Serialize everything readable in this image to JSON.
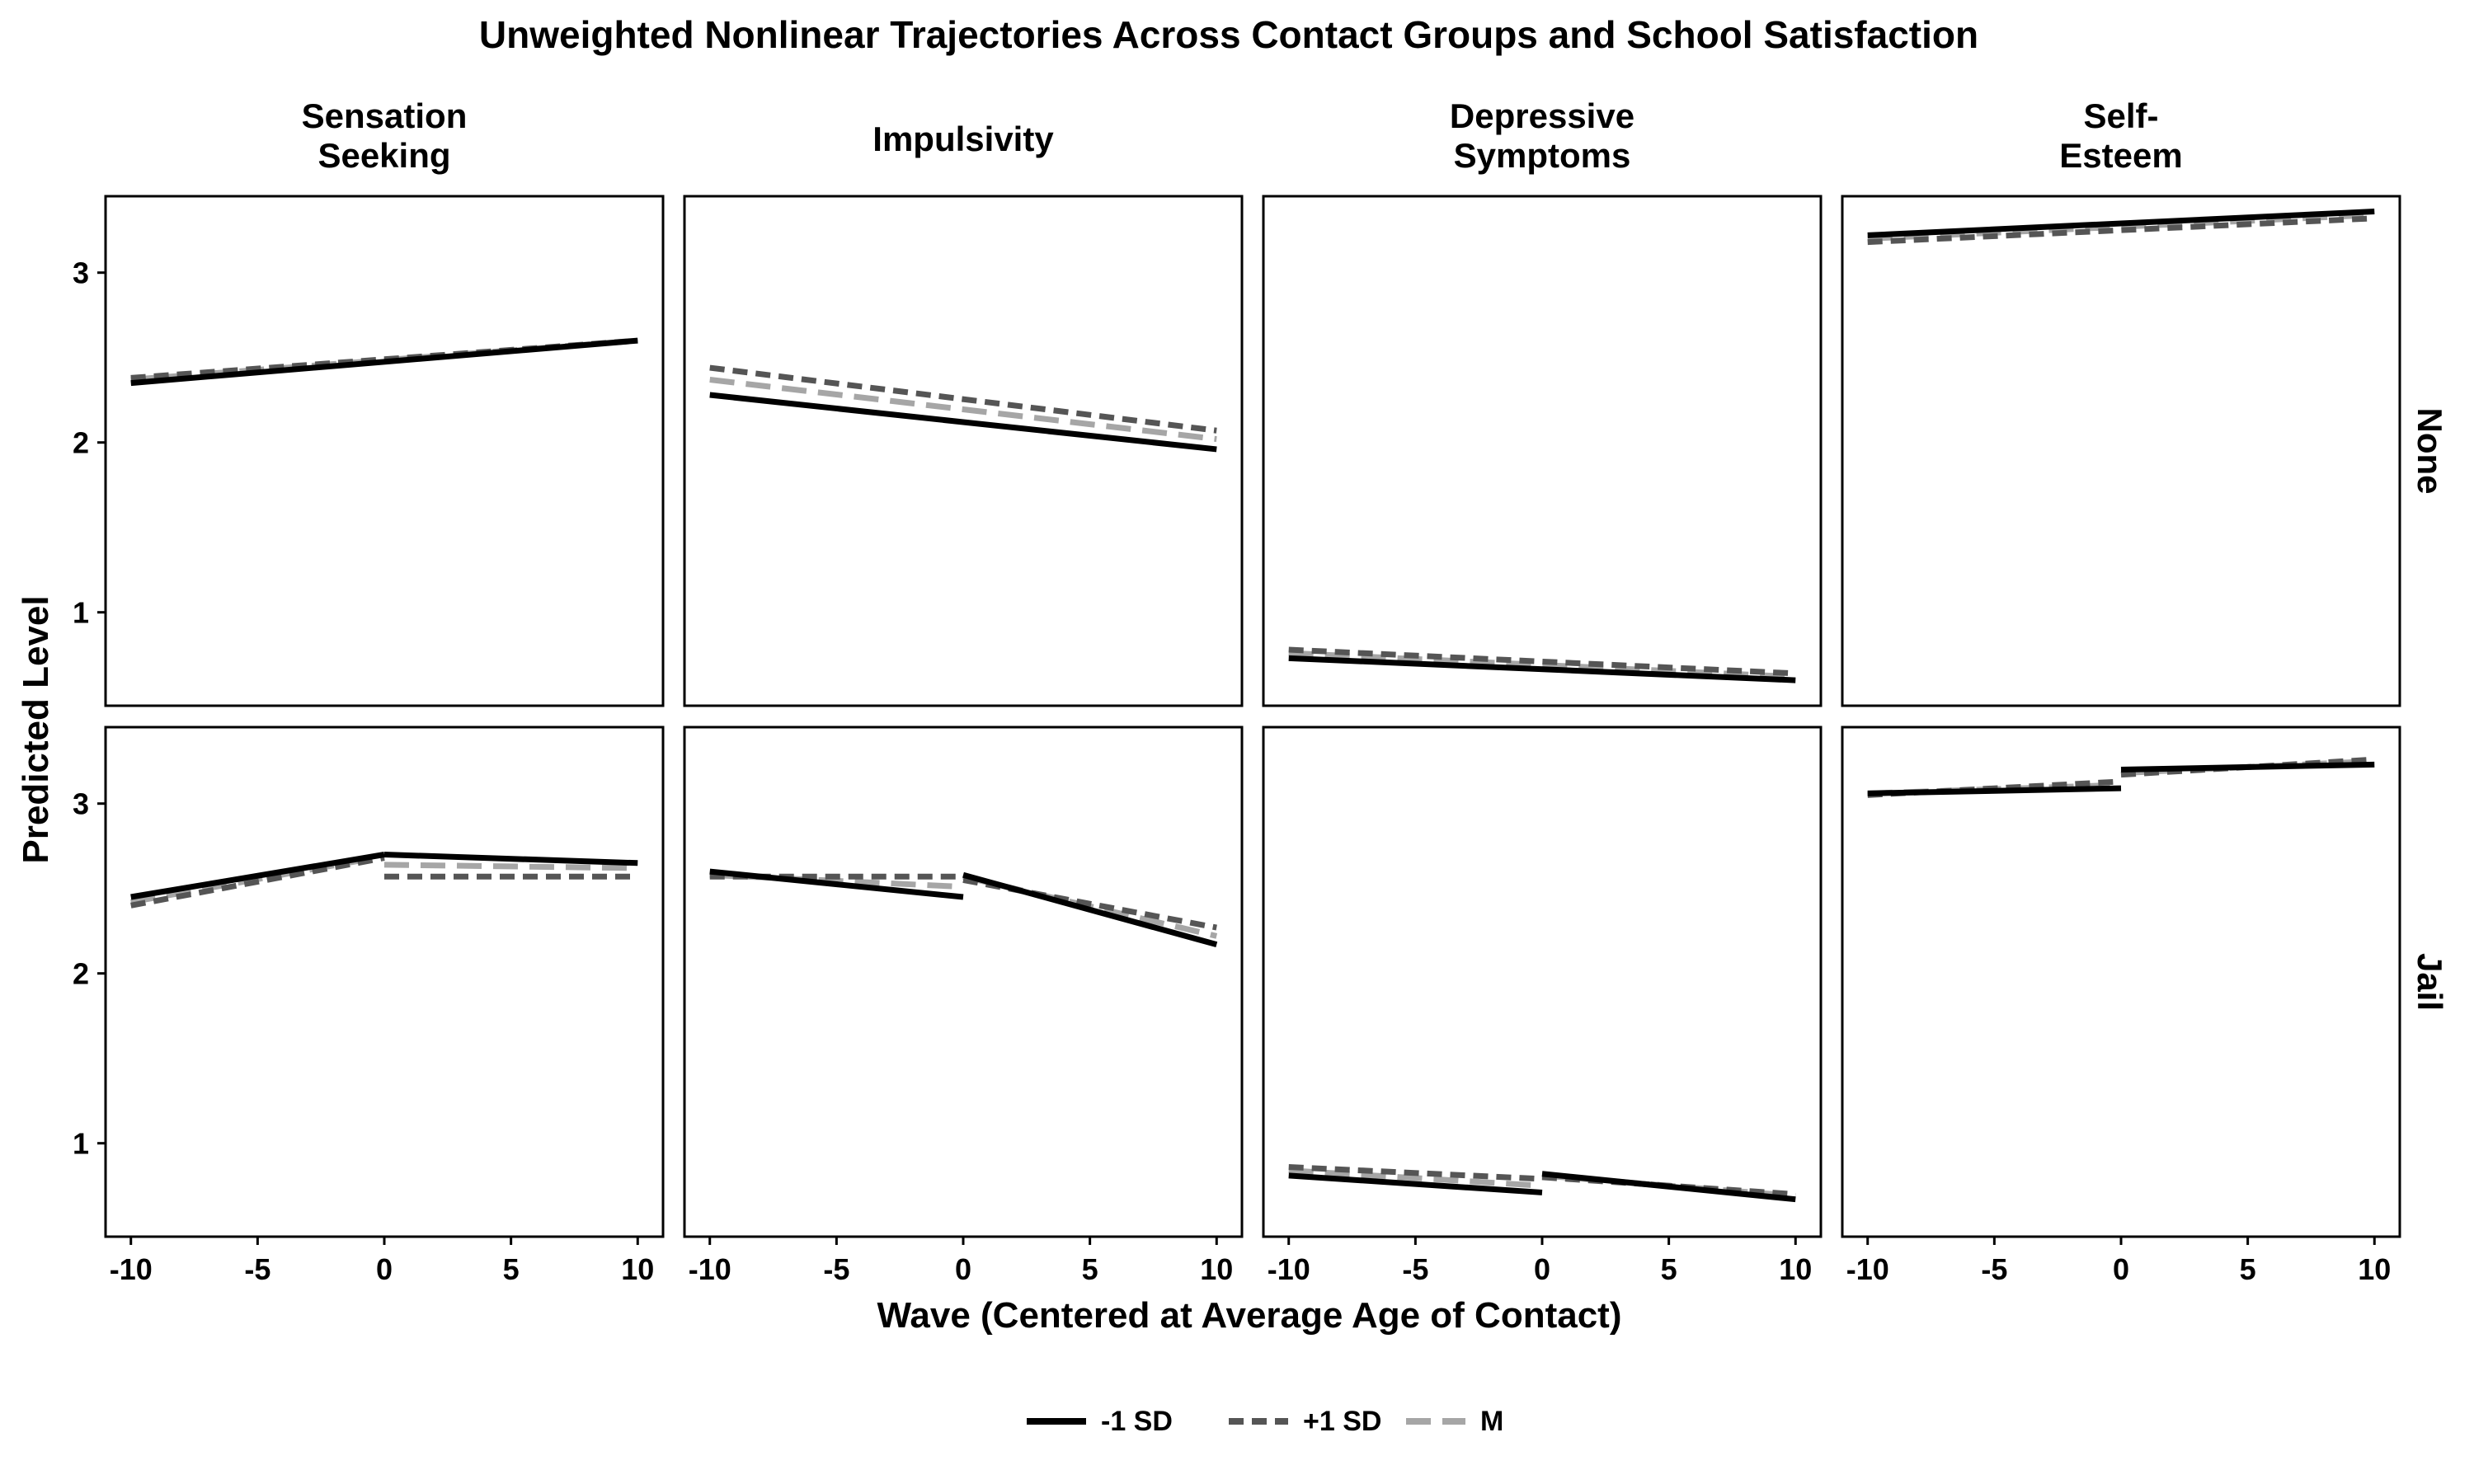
{
  "chart_data": {
    "type": "line",
    "title": "Unweighted Nonlinear Trajectories Across Contact Groups and School Satisfaction",
    "xlabel": "Wave (Centered at Average Age of Contact)",
    "ylabel": "Predicted Level",
    "xlim": [
      -11,
      11
    ],
    "ylim": [
      0.45,
      3.45
    ],
    "x_ticks": [
      -10,
      -5,
      0,
      5,
      10
    ],
    "x_tick_labels": [
      "-10",
      "-5",
      "0",
      "5",
      "10"
    ],
    "y_ticks": [
      1,
      2,
      3
    ],
    "y_tick_labels": [
      "1",
      "2",
      "3"
    ],
    "columns": [
      "Sensation\nSeeking",
      "Impulsivity",
      "Depressive\nSymptoms",
      "Self-\nEsteem"
    ],
    "rows": [
      "None",
      "Jail"
    ],
    "legend": {
      "position": "bottom",
      "entries": [
        {
          "key": "low",
          "label": "-1 SD",
          "color": "#000000",
          "dash": "solid"
        },
        {
          "key": "high",
          "label": "+1 SD",
          "color": "#555555",
          "dash": "dashed"
        },
        {
          "key": "mean",
          "label": "M",
          "color": "#a6a6a6",
          "dash": "longdash"
        }
      ]
    },
    "panels": [
      {
        "row": 0,
        "col": 0,
        "series": {
          "low": [
            [
              [
                -10,
                2.35
              ],
              [
                10,
                2.6
              ]
            ]
          ],
          "high": [
            [
              [
                -10,
                2.38
              ],
              [
                10,
                2.6
              ]
            ]
          ],
          "mean": [
            [
              [
                -10,
                2.37
              ],
              [
                10,
                2.6
              ]
            ]
          ]
        }
      },
      {
        "row": 0,
        "col": 1,
        "series": {
          "low": [
            [
              [
                -10,
                2.28
              ],
              [
                10,
                1.96
              ]
            ]
          ],
          "high": [
            [
              [
                -10,
                2.44
              ],
              [
                10,
                2.07
              ]
            ]
          ],
          "mean": [
            [
              [
                -10,
                2.37
              ],
              [
                10,
                2.02
              ]
            ]
          ]
        }
      },
      {
        "row": 0,
        "col": 2,
        "series": {
          "low": [
            [
              [
                -10,
                0.73
              ],
              [
                10,
                0.6
              ]
            ]
          ],
          "high": [
            [
              [
                -10,
                0.78
              ],
              [
                10,
                0.64
              ]
            ]
          ],
          "mean": [
            [
              [
                -10,
                0.76
              ],
              [
                10,
                0.62
              ]
            ]
          ]
        }
      },
      {
        "row": 0,
        "col": 3,
        "series": {
          "low": [
            [
              [
                -10,
                3.22
              ],
              [
                10,
                3.36
              ]
            ]
          ],
          "high": [
            [
              [
                -10,
                3.18
              ],
              [
                10,
                3.32
              ]
            ]
          ],
          "mean": [
            [
              [
                -10,
                3.2
              ],
              [
                10,
                3.34
              ]
            ]
          ]
        }
      },
      {
        "row": 1,
        "col": 0,
        "series": {
          "low": [
            [
              [
                -10,
                2.45
              ],
              [
                0,
                2.7
              ]
            ],
            [
              [
                0,
                2.7
              ],
              [
                10,
                2.65
              ]
            ]
          ],
          "high": [
            [
              [
                -10,
                2.4
              ],
              [
                0,
                2.68
              ]
            ],
            [
              [
                0,
                2.57
              ],
              [
                10,
                2.57
              ]
            ]
          ],
          "mean": [
            [
              [
                -10,
                2.42
              ],
              [
                0,
                2.69
              ]
            ],
            [
              [
                0,
                2.64
              ],
              [
                10,
                2.62
              ]
            ]
          ]
        }
      },
      {
        "row": 1,
        "col": 1,
        "series": {
          "low": [
            [
              [
                -10,
                2.6
              ],
              [
                0,
                2.45
              ]
            ],
            [
              [
                0,
                2.58
              ],
              [
                10,
                2.17
              ]
            ]
          ],
          "high": [
            [
              [
                -10,
                2.57
              ],
              [
                0,
                2.57
              ]
            ],
            [
              [
                0,
                2.55
              ],
              [
                10,
                2.27
              ]
            ]
          ],
          "mean": [
            [
              [
                -10,
                2.58
              ],
              [
                0,
                2.51
              ]
            ],
            [
              [
                0,
                2.57
              ],
              [
                10,
                2.22
              ]
            ]
          ]
        }
      },
      {
        "row": 1,
        "col": 2,
        "series": {
          "low": [
            [
              [
                -10,
                0.81
              ],
              [
                0,
                0.71
              ]
            ],
            [
              [
                0,
                0.82
              ],
              [
                10,
                0.67
              ]
            ]
          ],
          "high": [
            [
              [
                -10,
                0.86
              ],
              [
                0,
                0.79
              ]
            ],
            [
              [
                0,
                0.8
              ],
              [
                10,
                0.7
              ]
            ]
          ],
          "mean": [
            [
              [
                -10,
                0.84
              ],
              [
                0,
                0.75
              ]
            ],
            [
              [
                0,
                0.81
              ],
              [
                10,
                0.69
              ]
            ]
          ]
        }
      },
      {
        "row": 1,
        "col": 3,
        "series": {
          "low": [
            [
              [
                -10,
                3.06
              ],
              [
                0,
                3.09
              ]
            ],
            [
              [
                0,
                3.2
              ],
              [
                10,
                3.23
              ]
            ]
          ],
          "high": [
            [
              [
                -10,
                3.05
              ],
              [
                0,
                3.13
              ]
            ],
            [
              [
                0,
                3.17
              ],
              [
                10,
                3.26
              ]
            ]
          ],
          "mean": [
            [
              [
                -10,
                3.06
              ],
              [
                0,
                3.11
              ]
            ],
            [
              [
                0,
                3.18
              ],
              [
                10,
                3.25
              ]
            ]
          ]
        }
      }
    ]
  }
}
